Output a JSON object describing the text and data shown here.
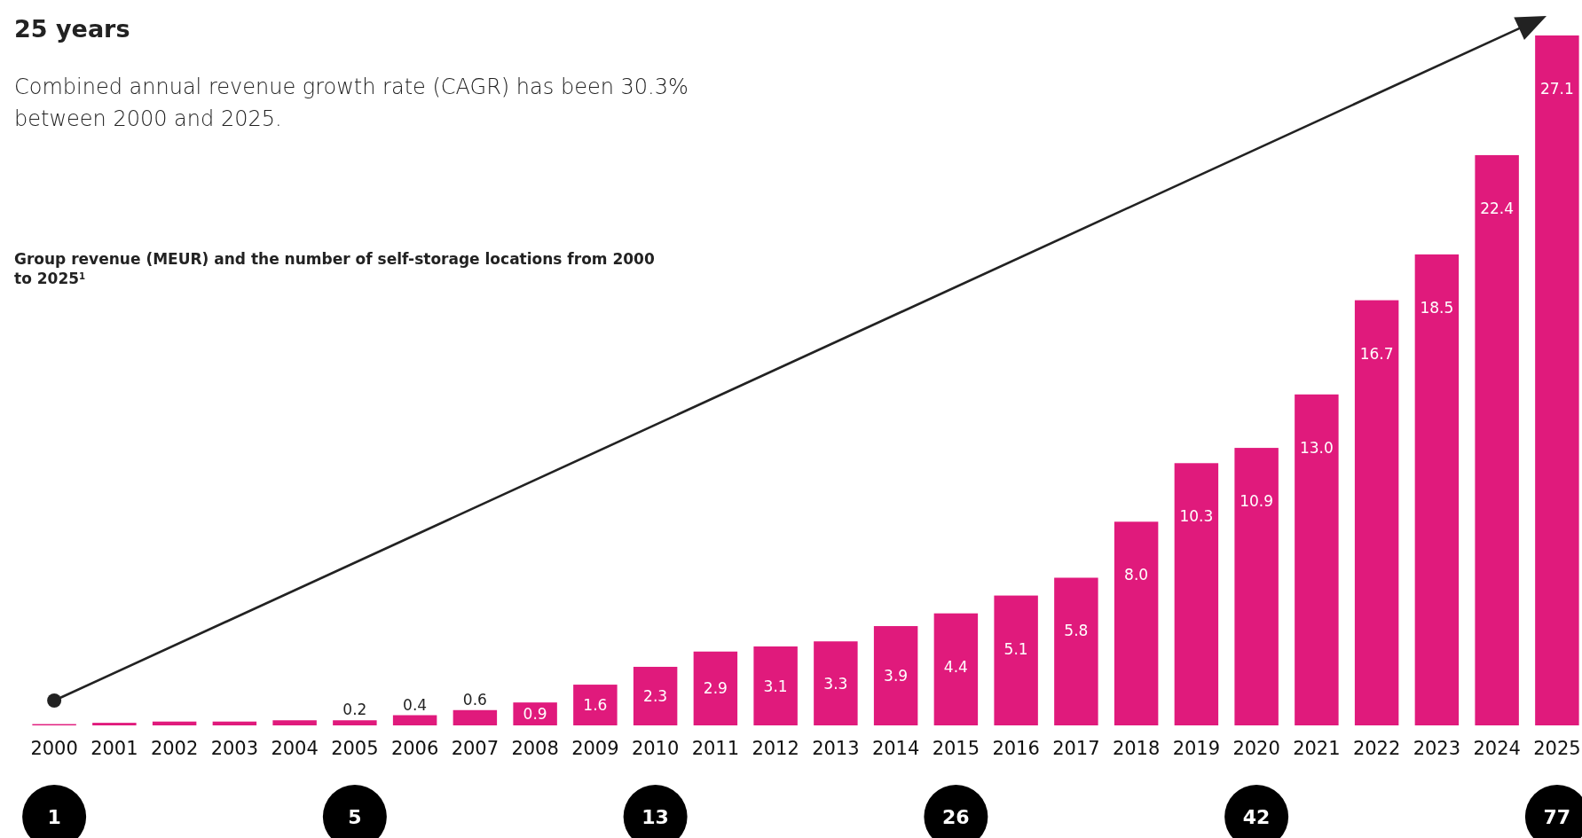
{
  "chart_data": {
    "type": "bar",
    "title": "25 years",
    "subtitle": "Combined annual revenue growth rate (CAGR) has been 30.3% between 2000 and 2025.",
    "annotations": [
      "Group revenue (MEUR) and the number of self-storage locations from 2000 to 2025$^{1}$",
      "1",
      "5",
      "13",
      "26",
      "42",
      "77"
    ],
    "categories": [
      "2000",
      "2001",
      "2002",
      "2003",
      "2004",
      "2005",
      "2006",
      "2007",
      "2008",
      "2009",
      "2010",
      "2011",
      "2012",
      "2013",
      "2014",
      "2015",
      "2016",
      "2017",
      "2018",
      "2019",
      "2020",
      "2021",
      "2022",
      "2023",
      "2024",
      "2025"
    ],
    "values": [
      0.05,
      0.1,
      0.15,
      0.15,
      0.2,
      0.2,
      0.4,
      0.6,
      0.9,
      1.6,
      2.3,
      2.9,
      3.1,
      3.3,
      3.9,
      4.4,
      5.1,
      5.8,
      8.0,
      10.3,
      10.9,
      13.0,
      16.7,
      18.5,
      22.4,
      27.1
    ],
    "value_labels": [
      null,
      null,
      null,
      null,
      null,
      "0.2",
      "0.4",
      "0.6",
      "0.9",
      "1.6",
      "2.3",
      "2.9",
      "3.1",
      "3.3",
      "3.9",
      "4.4",
      "5.1",
      "5.8",
      "8.0",
      "10.3",
      "10.9",
      "13.0",
      "16.7",
      "18.5",
      "22.4",
      "27.1"
    ],
    "color": "#e01a7c"
  }
}
